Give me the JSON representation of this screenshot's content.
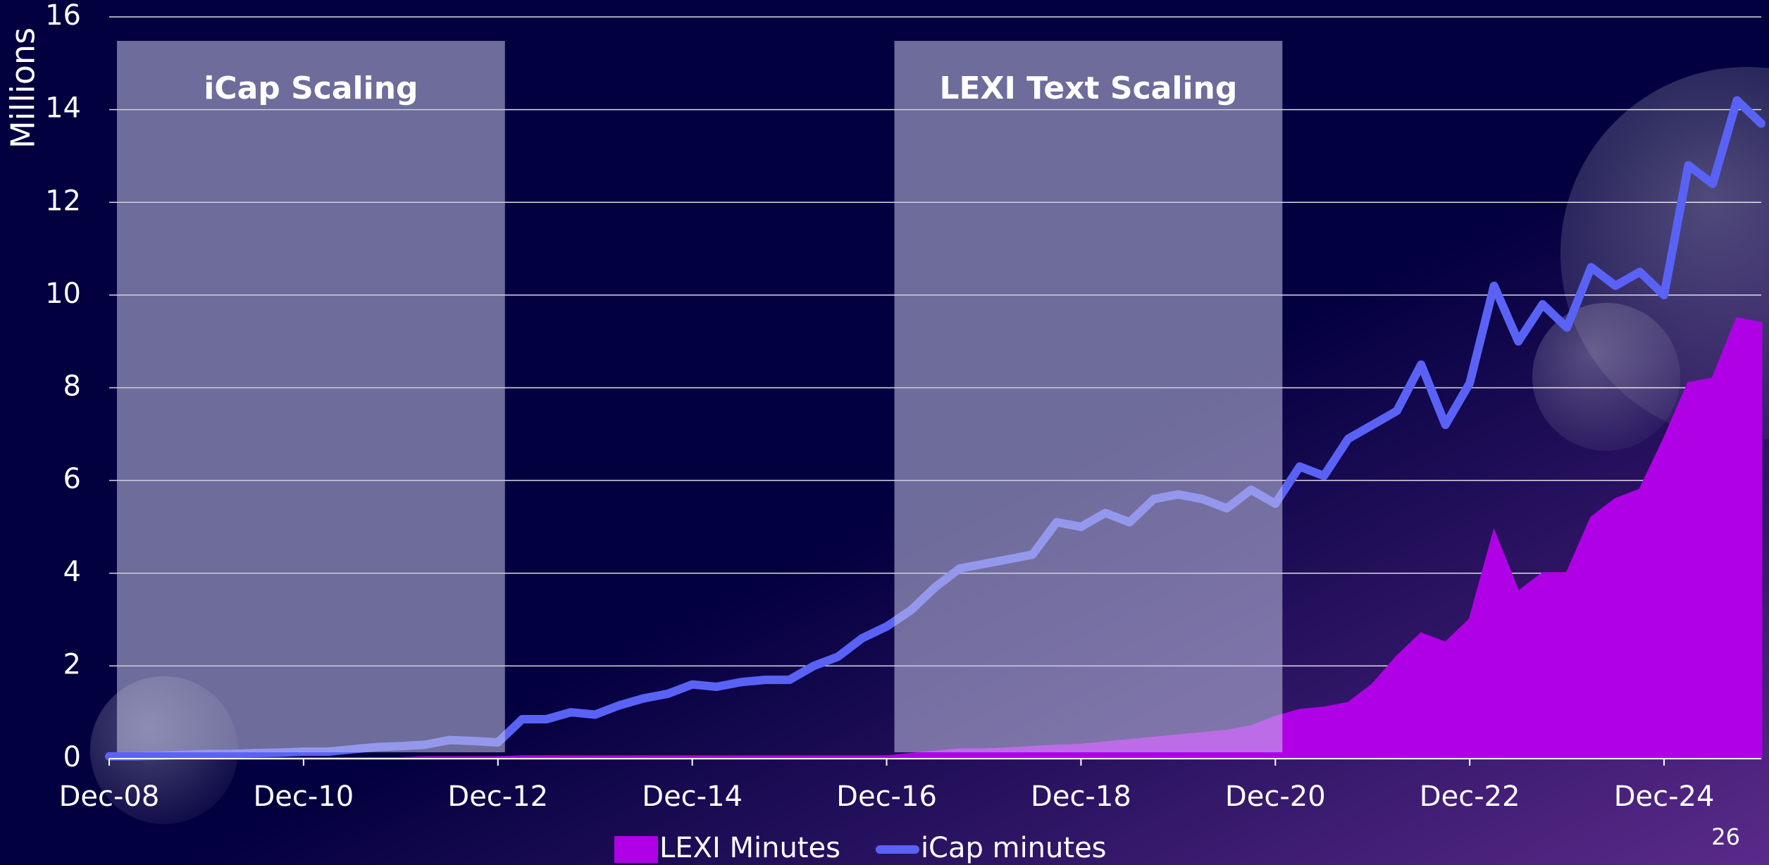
{
  "chart_data": {
    "type": "line",
    "y_label": "Millions",
    "x": [
      "Dec-08",
      "Mar-09",
      "Jun-09",
      "Sep-09",
      "Dec-09",
      "Mar-10",
      "Jun-10",
      "Sep-10",
      "Dec-10",
      "Mar-11",
      "Jun-11",
      "Sep-11",
      "Dec-11",
      "Mar-12",
      "Jun-12",
      "Sep-12",
      "Dec-12",
      "Mar-13",
      "Jun-13",
      "Sep-13",
      "Dec-13",
      "Mar-14",
      "Jun-14",
      "Sep-14",
      "Dec-14",
      "Mar-15",
      "Jun-15",
      "Sep-15",
      "Dec-15",
      "Mar-16",
      "Jun-16",
      "Sep-16",
      "Dec-16",
      "Mar-17",
      "Jun-17",
      "Sep-17",
      "Dec-17",
      "Mar-18",
      "Jun-18",
      "Sep-18",
      "Dec-18",
      "Mar-19",
      "Jun-19",
      "Sep-19",
      "Dec-19",
      "Mar-20",
      "Jun-20",
      "Sep-20",
      "Dec-20",
      "Mar-21",
      "Jun-21",
      "Sep-21",
      "Dec-21",
      "Mar-22",
      "Jun-22",
      "Sep-22",
      "Dec-22",
      "Mar-23",
      "Jun-23",
      "Sep-23",
      "Dec-23",
      "Mar-24",
      "Jun-24",
      "Sep-24",
      "Dec-24",
      "Mar-25",
      "Jun-25",
      "Sep-25",
      "Dec-25"
    ],
    "series": [
      {
        "name": "LEXI Minutes",
        "kind": "area",
        "color": "#b000e6",
        "values": [
          0.01,
          0.01,
          0.01,
          0.01,
          0.01,
          0.01,
          0.01,
          0.01,
          0.01,
          0.01,
          0.01,
          0.01,
          0.01,
          0.03,
          0.03,
          0.03,
          0.03,
          0.05,
          0.05,
          0.05,
          0.05,
          0.05,
          0.05,
          0.05,
          0.05,
          0.05,
          0.05,
          0.05,
          0.05,
          0.05,
          0.05,
          0.05,
          0.05,
          0.1,
          0.15,
          0.2,
          0.2,
          0.22,
          0.25,
          0.28,
          0.3,
          0.35,
          0.4,
          0.45,
          0.5,
          0.55,
          0.6,
          0.7,
          0.9,
          1.05,
          1.1,
          1.2,
          1.6,
          2.2,
          2.7,
          2.5,
          3.0,
          4.9,
          3.6,
          4.0,
          4.0,
          5.2,
          5.6,
          5.8,
          6.9,
          8.1,
          8.2,
          9.5,
          9.4
        ]
      },
      {
        "name": "iCap minutes",
        "kind": "line",
        "color": "#5a62f6",
        "values": [
          0.05,
          0.05,
          0.06,
          0.08,
          0.1,
          0.1,
          0.12,
          0.13,
          0.15,
          0.15,
          0.2,
          0.25,
          0.27,
          0.3,
          0.4,
          0.38,
          0.35,
          0.85,
          0.85,
          1.0,
          0.95,
          1.15,
          1.3,
          1.4,
          1.6,
          1.55,
          1.65,
          1.7,
          1.7,
          2.0,
          2.2,
          2.6,
          2.85,
          3.2,
          3.7,
          4.1,
          4.2,
          4.3,
          4.4,
          5.1,
          5.0,
          5.3,
          5.1,
          5.6,
          5.7,
          5.6,
          5.4,
          5.8,
          5.5,
          6.3,
          6.1,
          6.9,
          7.2,
          7.5,
          8.5,
          7.2,
          8.1,
          10.2,
          9.0,
          9.8,
          9.3,
          10.6,
          10.2,
          10.5,
          10.0,
          12.8,
          12.4,
          14.2,
          13.7
        ]
      }
    ],
    "xticks": [
      "Dec-08",
      "Dec-10",
      "Dec-12",
      "Dec-14",
      "Dec-16",
      "Dec-18",
      "Dec-20",
      "Dec-22",
      "Dec-24"
    ],
    "ylim": [
      0,
      16
    ],
    "yticks": [
      0,
      2,
      4,
      6,
      8,
      10,
      12,
      14,
      16
    ],
    "grid": true,
    "annotations": [
      {
        "text": "iCap Scaling",
        "from": "Dec-08",
        "to": "Dec-12"
      },
      {
        "text": "LEXI Text Scaling",
        "from": "Dec-16",
        "to": "Dec-20"
      }
    ],
    "page_number": "26"
  }
}
